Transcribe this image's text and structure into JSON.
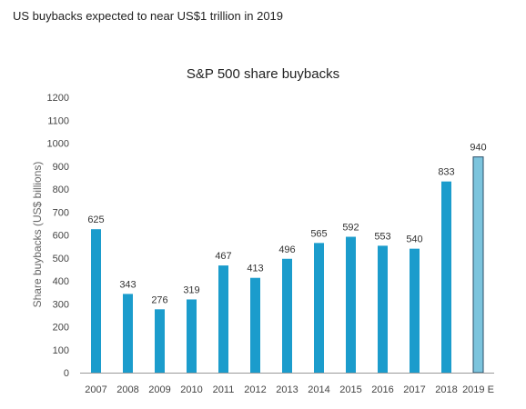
{
  "headline": "US buybacks expected to near US$1 trillion in 2019",
  "colors": {
    "bar": "#1b9ccc",
    "estimate_bar": "#7cc4dd",
    "estimate_stroke": "#2a4e68",
    "axis": "#999999"
  },
  "chart_data": {
    "type": "bar",
    "title": "S&P 500 share buybacks",
    "xlabel": "",
    "ylabel": "Share buybacks (US$ billions)",
    "ylim": [
      0,
      1200
    ],
    "yticks": [
      0,
      100,
      200,
      300,
      400,
      500,
      600,
      700,
      800,
      900,
      1000,
      1100,
      1200
    ],
    "grid": false,
    "categories": [
      "2007",
      "2008",
      "2009",
      "2010",
      "2011",
      "2012",
      "2013",
      "2014",
      "2015",
      "2016",
      "2017",
      "2018",
      "2019 E"
    ],
    "values": [
      625,
      343,
      276,
      319,
      467,
      413,
      496,
      565,
      592,
      553,
      540,
      833,
      940
    ],
    "data_labels": [
      "625",
      "343",
      "276",
      "319",
      "467",
      "413",
      "496",
      "565",
      "592",
      "553",
      "540",
      "833",
      "940"
    ],
    "estimate_index": 12
  }
}
